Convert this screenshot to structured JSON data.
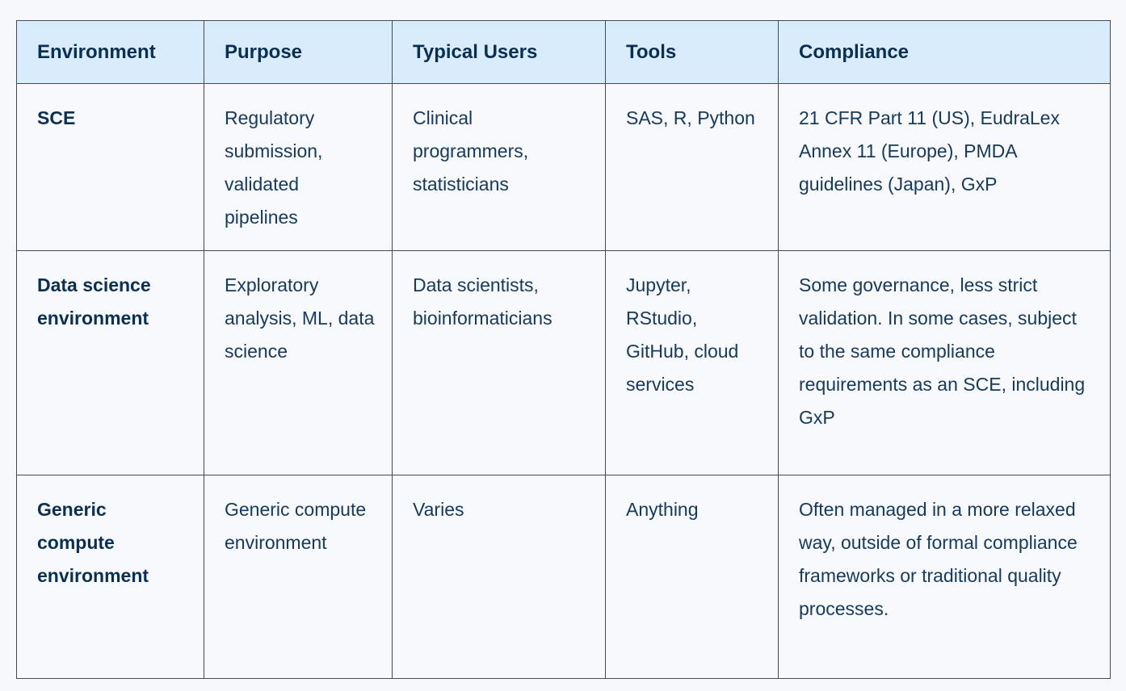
{
  "page": {
    "background_color": "#f6f8fb"
  },
  "table": {
    "style": {
      "header_bg": "#d9ecfb",
      "header_text_color": "#0a2f55",
      "body_text_color": "#163a60",
      "cell_bg": "#f8f9fc",
      "border_color": "#444a52"
    },
    "columns": {
      "environment": "Environment",
      "purpose": "Purpose",
      "typical_users": "Typical Users",
      "tools": "Tools",
      "compliance": "Compliance"
    },
    "rows": [
      {
        "environment": "SCE",
        "purpose": "Regulatory submission, validated pipelines",
        "typical_users": "Clinical programmers, statisticians",
        "tools": "SAS, R, Python",
        "compliance": "21 CFR Part 11 (US), EudraLex Annex 11 (Europe), PMDA guidelines (Japan), GxP"
      },
      {
        "environment": "Data science environment",
        "purpose": "Exploratory analysis, ML, data science",
        "typical_users": "Data scientists, bioinformaticians",
        "tools": "Jupyter, RStudio, GitHub, cloud services",
        "compliance": "Some governance, less strict validation. In some cases, subject to the same compliance requirements as an SCE, including GxP"
      },
      {
        "environment": "Generic compute environment",
        "purpose": "Generic compute environment",
        "typical_users": "Varies",
        "tools": "Anything",
        "compliance": "Often managed in a more relaxed way, outside of formal compliance frameworks or traditional quality processes."
      }
    ]
  }
}
